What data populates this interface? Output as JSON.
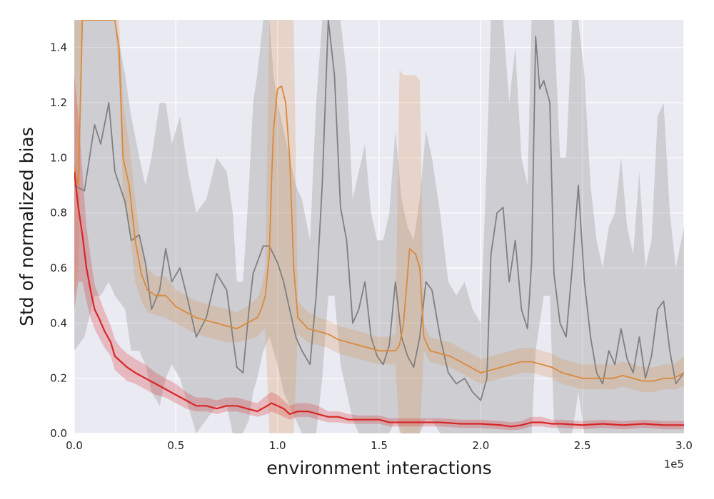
{
  "chart_data": {
    "type": "line",
    "title": "",
    "xlabel": "environment interactions",
    "ylabel": "Std of normalized bias",
    "x_offset_label": "1e5",
    "xlim": [
      0,
      300000
    ],
    "ylim": [
      0,
      1.5
    ],
    "xticks": [
      0,
      50000,
      100000,
      150000,
      200000,
      250000,
      300000
    ],
    "xtick_labels": [
      "0.0",
      "0.5",
      "1.0",
      "1.5",
      "2.0",
      "2.5",
      "3.0"
    ],
    "yticks": [
      0,
      0.2,
      0.4,
      0.6,
      0.8,
      1.0,
      1.2,
      1.4
    ],
    "ytick_labels": [
      "0.0",
      "0.2",
      "0.4",
      "0.6",
      "0.8",
      "1.0",
      "1.2",
      "1.4"
    ],
    "grid": true,
    "legend": "none",
    "colors": {
      "background": "#eaeaf2",
      "grid": "#ffffff",
      "gray": "#808080",
      "orange": "#d98a3d",
      "red": "#d62728"
    },
    "series": [
      {
        "color": "gray",
        "x": [
          0,
          5000,
          10000,
          13000,
          17000,
          20000,
          25000,
          28000,
          32000,
          35000,
          38000,
          42000,
          45000,
          48000,
          52000,
          56000,
          60000,
          65000,
          70000,
          75000,
          78000,
          80000,
          83000,
          86000,
          88000,
          90000,
          93000,
          96000,
          98000,
          100000,
          103000,
          106000,
          109000,
          112000,
          116000,
          119000,
          122000,
          125000,
          128000,
          131000,
          134000,
          137000,
          140000,
          143000,
          146000,
          149000,
          152000,
          155000,
          158000,
          161000,
          164000,
          167000,
          170000,
          173000,
          176000,
          180000,
          184000,
          188000,
          192000,
          196000,
          200000,
          203000,
          205000,
          208000,
          211000,
          214000,
          217000,
          220000,
          223000,
          225000,
          227000,
          229000,
          231000,
          234000,
          236000,
          239000,
          242000,
          245000,
          248000,
          251000,
          254000,
          257000,
          260000,
          263000,
          266000,
          269000,
          272000,
          275000,
          278000,
          281000,
          284000,
          287000,
          290000,
          293000,
          296000,
          300000
        ],
        "y": [
          0.9,
          0.88,
          1.12,
          1.05,
          1.2,
          0.95,
          0.84,
          0.7,
          0.72,
          0.62,
          0.45,
          0.52,
          0.67,
          0.55,
          0.6,
          0.48,
          0.35,
          0.42,
          0.58,
          0.52,
          0.35,
          0.24,
          0.22,
          0.45,
          0.58,
          0.62,
          0.68,
          0.68,
          0.65,
          0.62,
          0.55,
          0.45,
          0.35,
          0.3,
          0.25,
          0.5,
          0.9,
          1.5,
          1.3,
          0.82,
          0.7,
          0.4,
          0.45,
          0.55,
          0.35,
          0.28,
          0.25,
          0.32,
          0.55,
          0.35,
          0.28,
          0.24,
          0.35,
          0.55,
          0.52,
          0.35,
          0.22,
          0.18,
          0.2,
          0.15,
          0.12,
          0.2,
          0.65,
          0.8,
          0.82,
          0.55,
          0.7,
          0.45,
          0.38,
          0.62,
          1.44,
          1.25,
          1.28,
          1.2,
          0.58,
          0.4,
          0.35,
          0.6,
          0.9,
          0.55,
          0.35,
          0.22,
          0.18,
          0.3,
          0.25,
          0.38,
          0.27,
          0.22,
          0.35,
          0.2,
          0.28,
          0.45,
          0.48,
          0.3,
          0.18,
          0.22
        ],
        "band_lower": [
          0.3,
          0.35,
          0.5,
          0.5,
          0.55,
          0.5,
          0.45,
          0.3,
          0.3,
          0.25,
          0.15,
          0.1,
          0.2,
          0.25,
          0.2,
          0.1,
          0.0,
          0.05,
          0.1,
          0.1,
          0.0,
          0.0,
          0.0,
          0.05,
          0.15,
          0.2,
          0.3,
          0.35,
          0.3,
          0.25,
          0.15,
          0.1,
          0.05,
          0.0,
          0.0,
          0.0,
          0.2,
          0.5,
          0.5,
          0.25,
          0.15,
          0.05,
          0.0,
          0.0,
          0.0,
          0.0,
          0.0,
          0.0,
          0.05,
          0.0,
          0.0,
          0.0,
          0.0,
          0.05,
          0.05,
          0.0,
          0.0,
          0.0,
          0.0,
          0.0,
          0.0,
          0.0,
          0.0,
          0.0,
          0.0,
          0.0,
          0.0,
          0.0,
          0.0,
          0.0,
          0.3,
          0.4,
          0.5,
          0.5,
          0.05,
          0.0,
          0.0,
          0.0,
          0.15,
          0.0,
          0.0,
          0.0,
          0.0,
          0.0,
          0.0,
          0.0,
          0.0,
          0.0,
          0.0,
          0.0,
          0.0,
          0.0,
          0.0,
          0.0,
          0.0,
          0.0
        ],
        "band_upper": [
          1.5,
          1.5,
          1.5,
          1.5,
          1.5,
          1.5,
          1.3,
          1.15,
          1.0,
          0.9,
          1.0,
          1.2,
          1.2,
          1.05,
          1.15,
          0.95,
          0.8,
          0.85,
          1.0,
          0.95,
          0.8,
          0.55,
          0.55,
          0.9,
          1.2,
          1.3,
          1.5,
          1.5,
          1.3,
          1.2,
          1.1,
          1.0,
          0.9,
          0.85,
          0.7,
          1.2,
          1.5,
          1.5,
          1.5,
          1.5,
          1.3,
          0.85,
          0.95,
          1.05,
          0.8,
          0.7,
          0.7,
          0.8,
          1.1,
          0.85,
          0.75,
          0.7,
          0.85,
          1.1,
          1.0,
          0.8,
          0.55,
          0.5,
          0.55,
          0.45,
          0.4,
          1.0,
          1.5,
          1.5,
          1.5,
          1.2,
          1.4,
          1.0,
          0.9,
          1.5,
          1.5,
          1.5,
          1.5,
          1.5,
          1.5,
          1.0,
          1.0,
          1.5,
          1.5,
          1.3,
          0.9,
          0.7,
          0.6,
          0.75,
          0.8,
          1.0,
          0.75,
          0.65,
          0.95,
          0.6,
          0.7,
          1.15,
          1.2,
          0.8,
          0.6,
          0.75
        ]
      },
      {
        "color": "orange",
        "x": [
          0,
          2000,
          4000,
          7000,
          10000,
          15000,
          18000,
          20000,
          22000,
          24000,
          27000,
          30000,
          33000,
          36000,
          40000,
          45000,
          50000,
          55000,
          60000,
          65000,
          70000,
          75000,
          80000,
          85000,
          90000,
          92000,
          94000,
          96000,
          97000,
          98000,
          100000,
          102000,
          104000,
          106000,
          108000,
          110000,
          115000,
          120000,
          125000,
          130000,
          135000,
          140000,
          145000,
          150000,
          155000,
          158000,
          160000,
          162000,
          165000,
          168000,
          170000,
          172000,
          175000,
          180000,
          185000,
          190000,
          195000,
          200000,
          205000,
          210000,
          215000,
          220000,
          225000,
          230000,
          235000,
          240000,
          245000,
          250000,
          255000,
          260000,
          265000,
          270000,
          275000,
          280000,
          285000,
          290000,
          295000,
          300000
        ],
        "y": [
          0.97,
          0.9,
          1.5,
          1.5,
          1.5,
          1.5,
          1.5,
          1.5,
          1.4,
          1.0,
          0.9,
          0.7,
          0.58,
          0.52,
          0.5,
          0.5,
          0.46,
          0.44,
          0.42,
          0.41,
          0.4,
          0.39,
          0.38,
          0.4,
          0.42,
          0.45,
          0.5,
          0.65,
          0.9,
          1.1,
          1.25,
          1.26,
          1.2,
          1.0,
          0.6,
          0.42,
          0.38,
          0.37,
          0.36,
          0.34,
          0.33,
          0.32,
          0.31,
          0.3,
          0.3,
          0.3,
          0.32,
          0.4,
          0.67,
          0.65,
          0.6,
          0.35,
          0.3,
          0.29,
          0.28,
          0.26,
          0.24,
          0.22,
          0.23,
          0.24,
          0.25,
          0.26,
          0.26,
          0.25,
          0.24,
          0.22,
          0.21,
          0.2,
          0.2,
          0.2,
          0.2,
          0.21,
          0.2,
          0.19,
          0.19,
          0.2,
          0.2,
          0.22
        ],
        "band_lower": [
          0.5,
          0.6,
          1.5,
          1.5,
          1.5,
          1.5,
          1.5,
          1.5,
          1.3,
          0.85,
          0.75,
          0.55,
          0.48,
          0.44,
          0.43,
          0.42,
          0.4,
          0.38,
          0.36,
          0.35,
          0.34,
          0.33,
          0.33,
          0.34,
          0.35,
          0.37,
          0.38,
          0.0,
          0.0,
          0.0,
          0.0,
          0.0,
          0.0,
          0.0,
          0.0,
          0.36,
          0.33,
          0.32,
          0.31,
          0.29,
          0.28,
          0.27,
          0.26,
          0.25,
          0.25,
          0.25,
          0.0,
          0.0,
          0.0,
          0.0,
          0.0,
          0.3,
          0.26,
          0.25,
          0.24,
          0.22,
          0.2,
          0.18,
          0.19,
          0.2,
          0.21,
          0.22,
          0.22,
          0.21,
          0.2,
          0.18,
          0.17,
          0.16,
          0.16,
          0.16,
          0.16,
          0.17,
          0.16,
          0.15,
          0.15,
          0.16,
          0.16,
          0.17
        ],
        "band_upper": [
          1.5,
          1.5,
          1.5,
          1.5,
          1.5,
          1.5,
          1.5,
          1.5,
          1.5,
          1.2,
          1.05,
          0.85,
          0.68,
          0.6,
          0.57,
          0.57,
          0.52,
          0.5,
          0.48,
          0.47,
          0.46,
          0.45,
          0.44,
          0.46,
          0.49,
          0.53,
          0.6,
          1.5,
          1.5,
          1.5,
          1.5,
          1.5,
          1.5,
          1.5,
          1.5,
          0.48,
          0.44,
          0.42,
          0.41,
          0.39,
          0.38,
          0.37,
          0.36,
          0.35,
          0.35,
          0.36,
          1.32,
          1.3,
          1.3,
          1.3,
          1.28,
          0.4,
          0.35,
          0.34,
          0.33,
          0.31,
          0.29,
          0.27,
          0.28,
          0.29,
          0.3,
          0.31,
          0.31,
          0.3,
          0.29,
          0.27,
          0.26,
          0.25,
          0.25,
          0.25,
          0.25,
          0.26,
          0.25,
          0.24,
          0.24,
          0.25,
          0.25,
          0.28
        ]
      },
      {
        "color": "red",
        "x": [
          0,
          2000,
          4000,
          6000,
          8000,
          10000,
          12000,
          15000,
          18000,
          20000,
          23000,
          26000,
          30000,
          35000,
          40000,
          45000,
          50000,
          55000,
          60000,
          65000,
          70000,
          75000,
          80000,
          85000,
          90000,
          95000,
          97000,
          100000,
          103000,
          106000,
          110000,
          115000,
          120000,
          125000,
          130000,
          135000,
          140000,
          145000,
          150000,
          155000,
          160000,
          170000,
          180000,
          190000,
          200000,
          210000,
          215000,
          220000,
          225000,
          230000,
          235000,
          240000,
          250000,
          260000,
          270000,
          280000,
          290000,
          300000
        ],
        "y": [
          0.95,
          0.82,
          0.72,
          0.6,
          0.52,
          0.45,
          0.42,
          0.37,
          0.33,
          0.28,
          0.26,
          0.24,
          0.22,
          0.2,
          0.18,
          0.16,
          0.14,
          0.12,
          0.1,
          0.1,
          0.09,
          0.1,
          0.1,
          0.09,
          0.08,
          0.1,
          0.11,
          0.1,
          0.09,
          0.07,
          0.08,
          0.08,
          0.07,
          0.06,
          0.06,
          0.05,
          0.05,
          0.05,
          0.05,
          0.04,
          0.04,
          0.04,
          0.04,
          0.035,
          0.035,
          0.03,
          0.025,
          0.03,
          0.04,
          0.04,
          0.035,
          0.035,
          0.03,
          0.035,
          0.03,
          0.035,
          0.03,
          0.03
        ],
        "band_lower": [
          0.45,
          0.55,
          0.55,
          0.48,
          0.42,
          0.38,
          0.35,
          0.31,
          0.28,
          0.23,
          0.21,
          0.19,
          0.18,
          0.16,
          0.14,
          0.13,
          0.11,
          0.09,
          0.08,
          0.08,
          0.07,
          0.08,
          0.08,
          0.07,
          0.06,
          0.07,
          0.08,
          0.07,
          0.06,
          0.05,
          0.06,
          0.06,
          0.05,
          0.04,
          0.04,
          0.035,
          0.035,
          0.035,
          0.035,
          0.025,
          0.025,
          0.025,
          0.025,
          0.02,
          0.02,
          0.015,
          0.012,
          0.015,
          0.025,
          0.025,
          0.02,
          0.02,
          0.015,
          0.02,
          0.015,
          0.02,
          0.015,
          0.015
        ],
        "band_upper": [
          1.3,
          1.15,
          0.95,
          0.75,
          0.64,
          0.54,
          0.5,
          0.44,
          0.39,
          0.34,
          0.31,
          0.29,
          0.27,
          0.25,
          0.22,
          0.2,
          0.18,
          0.15,
          0.13,
          0.13,
          0.12,
          0.13,
          0.13,
          0.12,
          0.11,
          0.14,
          0.15,
          0.14,
          0.12,
          0.1,
          0.11,
          0.11,
          0.1,
          0.08,
          0.08,
          0.07,
          0.065,
          0.065,
          0.065,
          0.055,
          0.055,
          0.055,
          0.055,
          0.05,
          0.05,
          0.045,
          0.04,
          0.045,
          0.06,
          0.06,
          0.05,
          0.05,
          0.045,
          0.05,
          0.045,
          0.05,
          0.045,
          0.045
        ]
      }
    ]
  }
}
